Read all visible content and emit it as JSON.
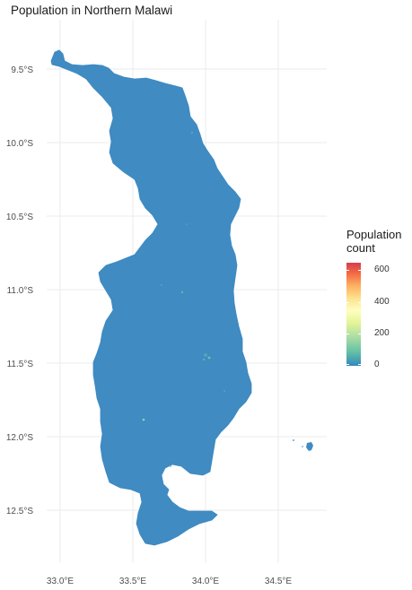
{
  "title": "Population in Northern Malawi",
  "x_axis": {
    "ticks": [
      "33.0°E",
      "33.5°E",
      "34.0°E",
      "34.5°E"
    ]
  },
  "y_axis": {
    "ticks": [
      "9.5°S",
      "10.0°S",
      "10.5°S",
      "11.0°S",
      "11.5°S",
      "12.0°S",
      "12.5°S"
    ]
  },
  "legend": {
    "title": "Population\ncount",
    "ticks": [
      "600",
      "400",
      "200",
      "0"
    ],
    "colors": [
      "#3288bd",
      "#66c2a5",
      "#abdda4",
      "#e6f598",
      "#ffffbf",
      "#fee08b",
      "#fdae61",
      "#f46d43",
      "#d53e4f"
    ]
  },
  "map": {
    "fill_color": "#3f8bc2",
    "grid_color": "#ebebeb"
  }
}
